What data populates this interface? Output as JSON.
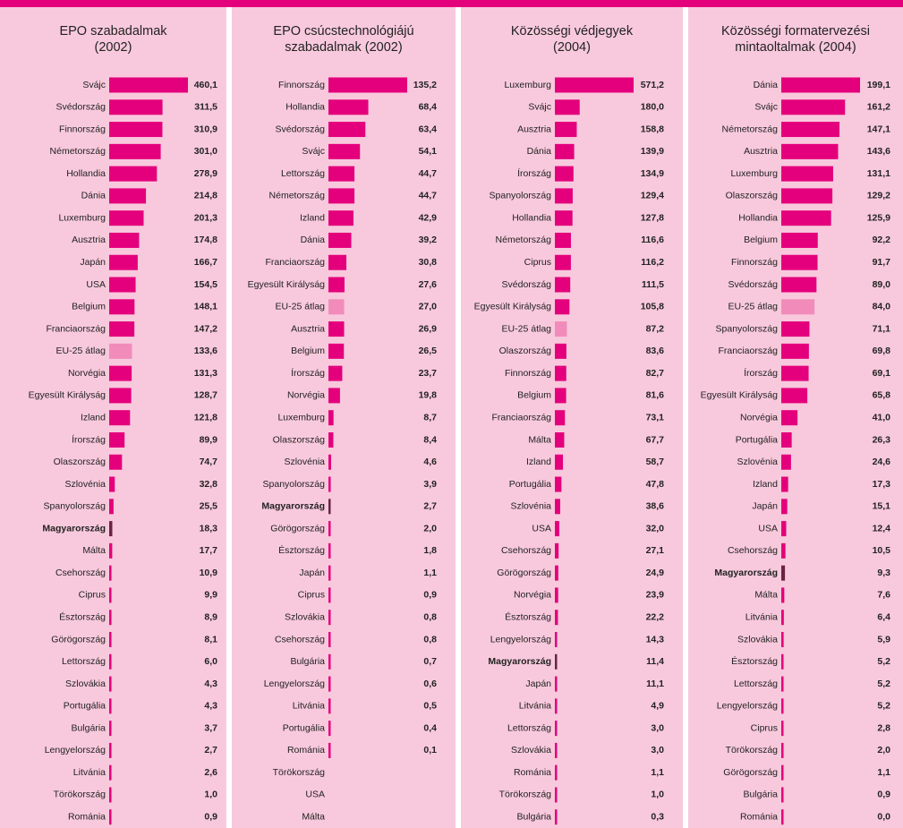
{
  "chart_data": [
    {
      "type": "hbar",
      "title": "EPO szabadalmak\n(2002)",
      "color": "#e4007c",
      "highlights": {
        "EU-25 átlag": {
          "color": "#f18cba",
          "bold": false
        },
        "Magyarország": {
          "color": "#6b2346",
          "bold": true
        }
      },
      "categories": [
        "Svájc",
        "Svédország",
        "Finnország",
        "Németország",
        "Hollandia",
        "Dánia",
        "Luxemburg",
        "Ausztria",
        "Japán",
        "USA",
        "Belgium",
        "Franciaország",
        "EU-25 átlag",
        "Norvégia",
        "Egyesült Királyság",
        "Izland",
        "Írország",
        "Olaszország",
        "Szlovénia",
        "Spanyolország",
        "Magyarország",
        "Málta",
        "Csehország",
        "Ciprus",
        "Észtország",
        "Görögország",
        "Lettország",
        "Szlovákia",
        "Portugália",
        "Bulgária",
        "Lengyelország",
        "Litvánia",
        "Törökország",
        "Románia"
      ],
      "values": [
        460.1,
        311.5,
        310.9,
        301.0,
        278.9,
        214.8,
        201.3,
        174.8,
        166.7,
        154.5,
        148.1,
        147.2,
        133.6,
        131.3,
        128.7,
        121.8,
        89.9,
        74.7,
        32.8,
        25.5,
        18.3,
        17.7,
        10.9,
        9.9,
        8.9,
        8.1,
        6.0,
        4.3,
        4.3,
        3.7,
        2.7,
        2.6,
        1.0,
        0.9
      ],
      "value_labels": [
        "460,1",
        "311,5",
        "310,9",
        "301,0",
        "278,9",
        "214,8",
        "201,3",
        "174,8",
        "166,7",
        "154,5",
        "148,1",
        "147,2",
        "133,6",
        "131,3",
        "128,7",
        "121,8",
        "89,9",
        "74,7",
        "32,8",
        "25,5",
        "18,3",
        "17,7",
        "10,9",
        "9,9",
        "8,9",
        "8,1",
        "6,0",
        "4,3",
        "4,3",
        "3,7",
        "2,7",
        "2,6",
        "1,0",
        "0,9"
      ]
    },
    {
      "type": "hbar",
      "title": "EPO csúcstechnológiájú\nszabadalmak (2002)",
      "color": "#e4007c",
      "highlights": {
        "EU-25 átlag": {
          "color": "#f18cba",
          "bold": false
        },
        "Magyarország": {
          "color": "#6b2346",
          "bold": true
        }
      },
      "categories": [
        "Finnország",
        "Hollandia",
        "Svédország",
        "Svájc",
        "Lettország",
        "Németország",
        "Izland",
        "Dánia",
        "Franciaország",
        "Egyesült Királyság",
        "EU-25 átlag",
        "Ausztria",
        "Belgium",
        "Írország",
        "Norvégia",
        "Luxemburg",
        "Olaszország",
        "Szlovénia",
        "Spanyolország",
        "Magyarország",
        "Görögország",
        "Észtország",
        "Japán",
        "Ciprus",
        "Szlovákia",
        "Csehország",
        "Bulgária",
        "Lengyelország",
        "Litvánia",
        "Portugália",
        "Románia",
        "Törökország",
        "USA",
        "Málta"
      ],
      "values": [
        135.2,
        68.4,
        63.4,
        54.1,
        44.7,
        44.7,
        42.9,
        39.2,
        30.8,
        27.6,
        27.0,
        26.9,
        26.5,
        23.7,
        19.8,
        8.7,
        8.4,
        4.6,
        3.9,
        2.7,
        2.0,
        1.8,
        1.1,
        0.9,
        0.8,
        0.8,
        0.7,
        0.6,
        0.5,
        0.4,
        0.1,
        null,
        null,
        null
      ],
      "value_labels": [
        "135,2",
        "68,4",
        "63,4",
        "54,1",
        "44,7",
        "44,7",
        "42,9",
        "39,2",
        "30,8",
        "27,6",
        "27,0",
        "26,9",
        "26,5",
        "23,7",
        "19,8",
        "8,7",
        "8,4",
        "4,6",
        "3,9",
        "2,7",
        "2,0",
        "1,8",
        "1,1",
        "0,9",
        "0,8",
        "0,8",
        "0,7",
        "0,6",
        "0,5",
        "0,4",
        "0,1",
        null,
        null,
        null
      ]
    },
    {
      "type": "hbar",
      "title": "Közösségi védjegyek\n(2004)",
      "color": "#e4007c",
      "highlights": {
        "EU-25 átlag": {
          "color": "#f18cba",
          "bold": false
        },
        "Magyarország": {
          "color": "#6b2346",
          "bold": true
        }
      },
      "categories": [
        "Luxemburg",
        "Svájc",
        "Ausztria",
        "Dánia",
        "Írország",
        "Spanyolország",
        "Hollandia",
        "Németország",
        "Ciprus",
        "Svédország",
        "Egyesült Királyság",
        "EU-25 átlag",
        "Olaszország",
        "Finnország",
        "Belgium",
        "Franciaország",
        "Málta",
        "Izland",
        "Portugália",
        "Szlovénia",
        "USA",
        "Csehország",
        "Görögország",
        "Norvégia",
        "Észtország",
        "Lengyelország",
        "Magyarország",
        "Japán",
        "Litvánia",
        "Lettország",
        "Szlovákia",
        "Románia",
        "Törökország",
        "Bulgária"
      ],
      "values": [
        571.2,
        180.0,
        158.8,
        139.9,
        134.9,
        129.4,
        127.8,
        116.6,
        116.2,
        111.5,
        105.8,
        87.2,
        83.6,
        82.7,
        81.6,
        73.1,
        67.7,
        58.7,
        47.8,
        38.6,
        32.0,
        27.1,
        24.9,
        23.9,
        22.2,
        14.3,
        11.4,
        11.1,
        4.9,
        3.0,
        3.0,
        1.1,
        1.0,
        0.3
      ],
      "value_labels": [
        "571,2",
        "180,0",
        "158,8",
        "139,9",
        "134,9",
        "129,4",
        "127,8",
        "116,6",
        "116,2",
        "111,5",
        "105,8",
        "87,2",
        "83,6",
        "82,7",
        "81,6",
        "73,1",
        "67,7",
        "58,7",
        "47,8",
        "38,6",
        "32,0",
        "27,1",
        "24,9",
        "23,9",
        "22,2",
        "14,3",
        "11,4",
        "11,1",
        "4,9",
        "3,0",
        "3,0",
        "1,1",
        "1,0",
        "0,3"
      ]
    },
    {
      "type": "hbar",
      "title": "Közösségi formatervezési\nmintaoltalmak (2004)",
      "color": "#e4007c",
      "highlights": {
        "EU-25 átlag": {
          "color": "#f18cba",
          "bold": false
        },
        "Magyarország": {
          "color": "#6b2346",
          "bold": true
        }
      },
      "categories": [
        "Dánia",
        "Svájc",
        "Németország",
        "Ausztria",
        "Luxemburg",
        "Olaszország",
        "Hollandia",
        "Belgium",
        "Finnország",
        "Svédország",
        "EU-25 átlag",
        "Spanyolország",
        "Franciaország",
        "Írország",
        "Egyesült Királyság",
        "Norvégia",
        "Portugália",
        "Szlovénia",
        "Izland",
        "Japán",
        "USA",
        "Csehország",
        "Magyarország",
        "Málta",
        "Litvánia",
        "Szlovákia",
        "Észtország",
        "Lettország",
        "Lengyelország",
        "Ciprus",
        "Törökország",
        "Görögország",
        "Bulgária",
        "Románia"
      ],
      "values": [
        199.1,
        161.2,
        147.1,
        143.6,
        131.1,
        129.2,
        125.9,
        92.2,
        91.7,
        89.0,
        84.0,
        71.1,
        69.8,
        69.1,
        65.8,
        41.0,
        26.3,
        24.6,
        17.3,
        15.1,
        12.4,
        10.5,
        9.3,
        7.6,
        6.4,
        5.9,
        5.2,
        5.2,
        5.2,
        2.8,
        2.0,
        1.1,
        0.9,
        0.0
      ],
      "value_labels": [
        "199,1",
        "161,2",
        "147,1",
        "143,6",
        "131,1",
        "129,2",
        "125,9",
        "92,2",
        "91,7",
        "89,0",
        "84,0",
        "71,1",
        "69,8",
        "69,1",
        "65,8",
        "41,0",
        "26,3",
        "24,6",
        "17,3",
        "15,1",
        "12,4",
        "10,5",
        "9,3",
        "7,6",
        "6,4",
        "5,9",
        "5,2",
        "5,2",
        "5,2",
        "2,8",
        "2,0",
        "1,1",
        "0,9",
        "0,0"
      ]
    }
  ]
}
